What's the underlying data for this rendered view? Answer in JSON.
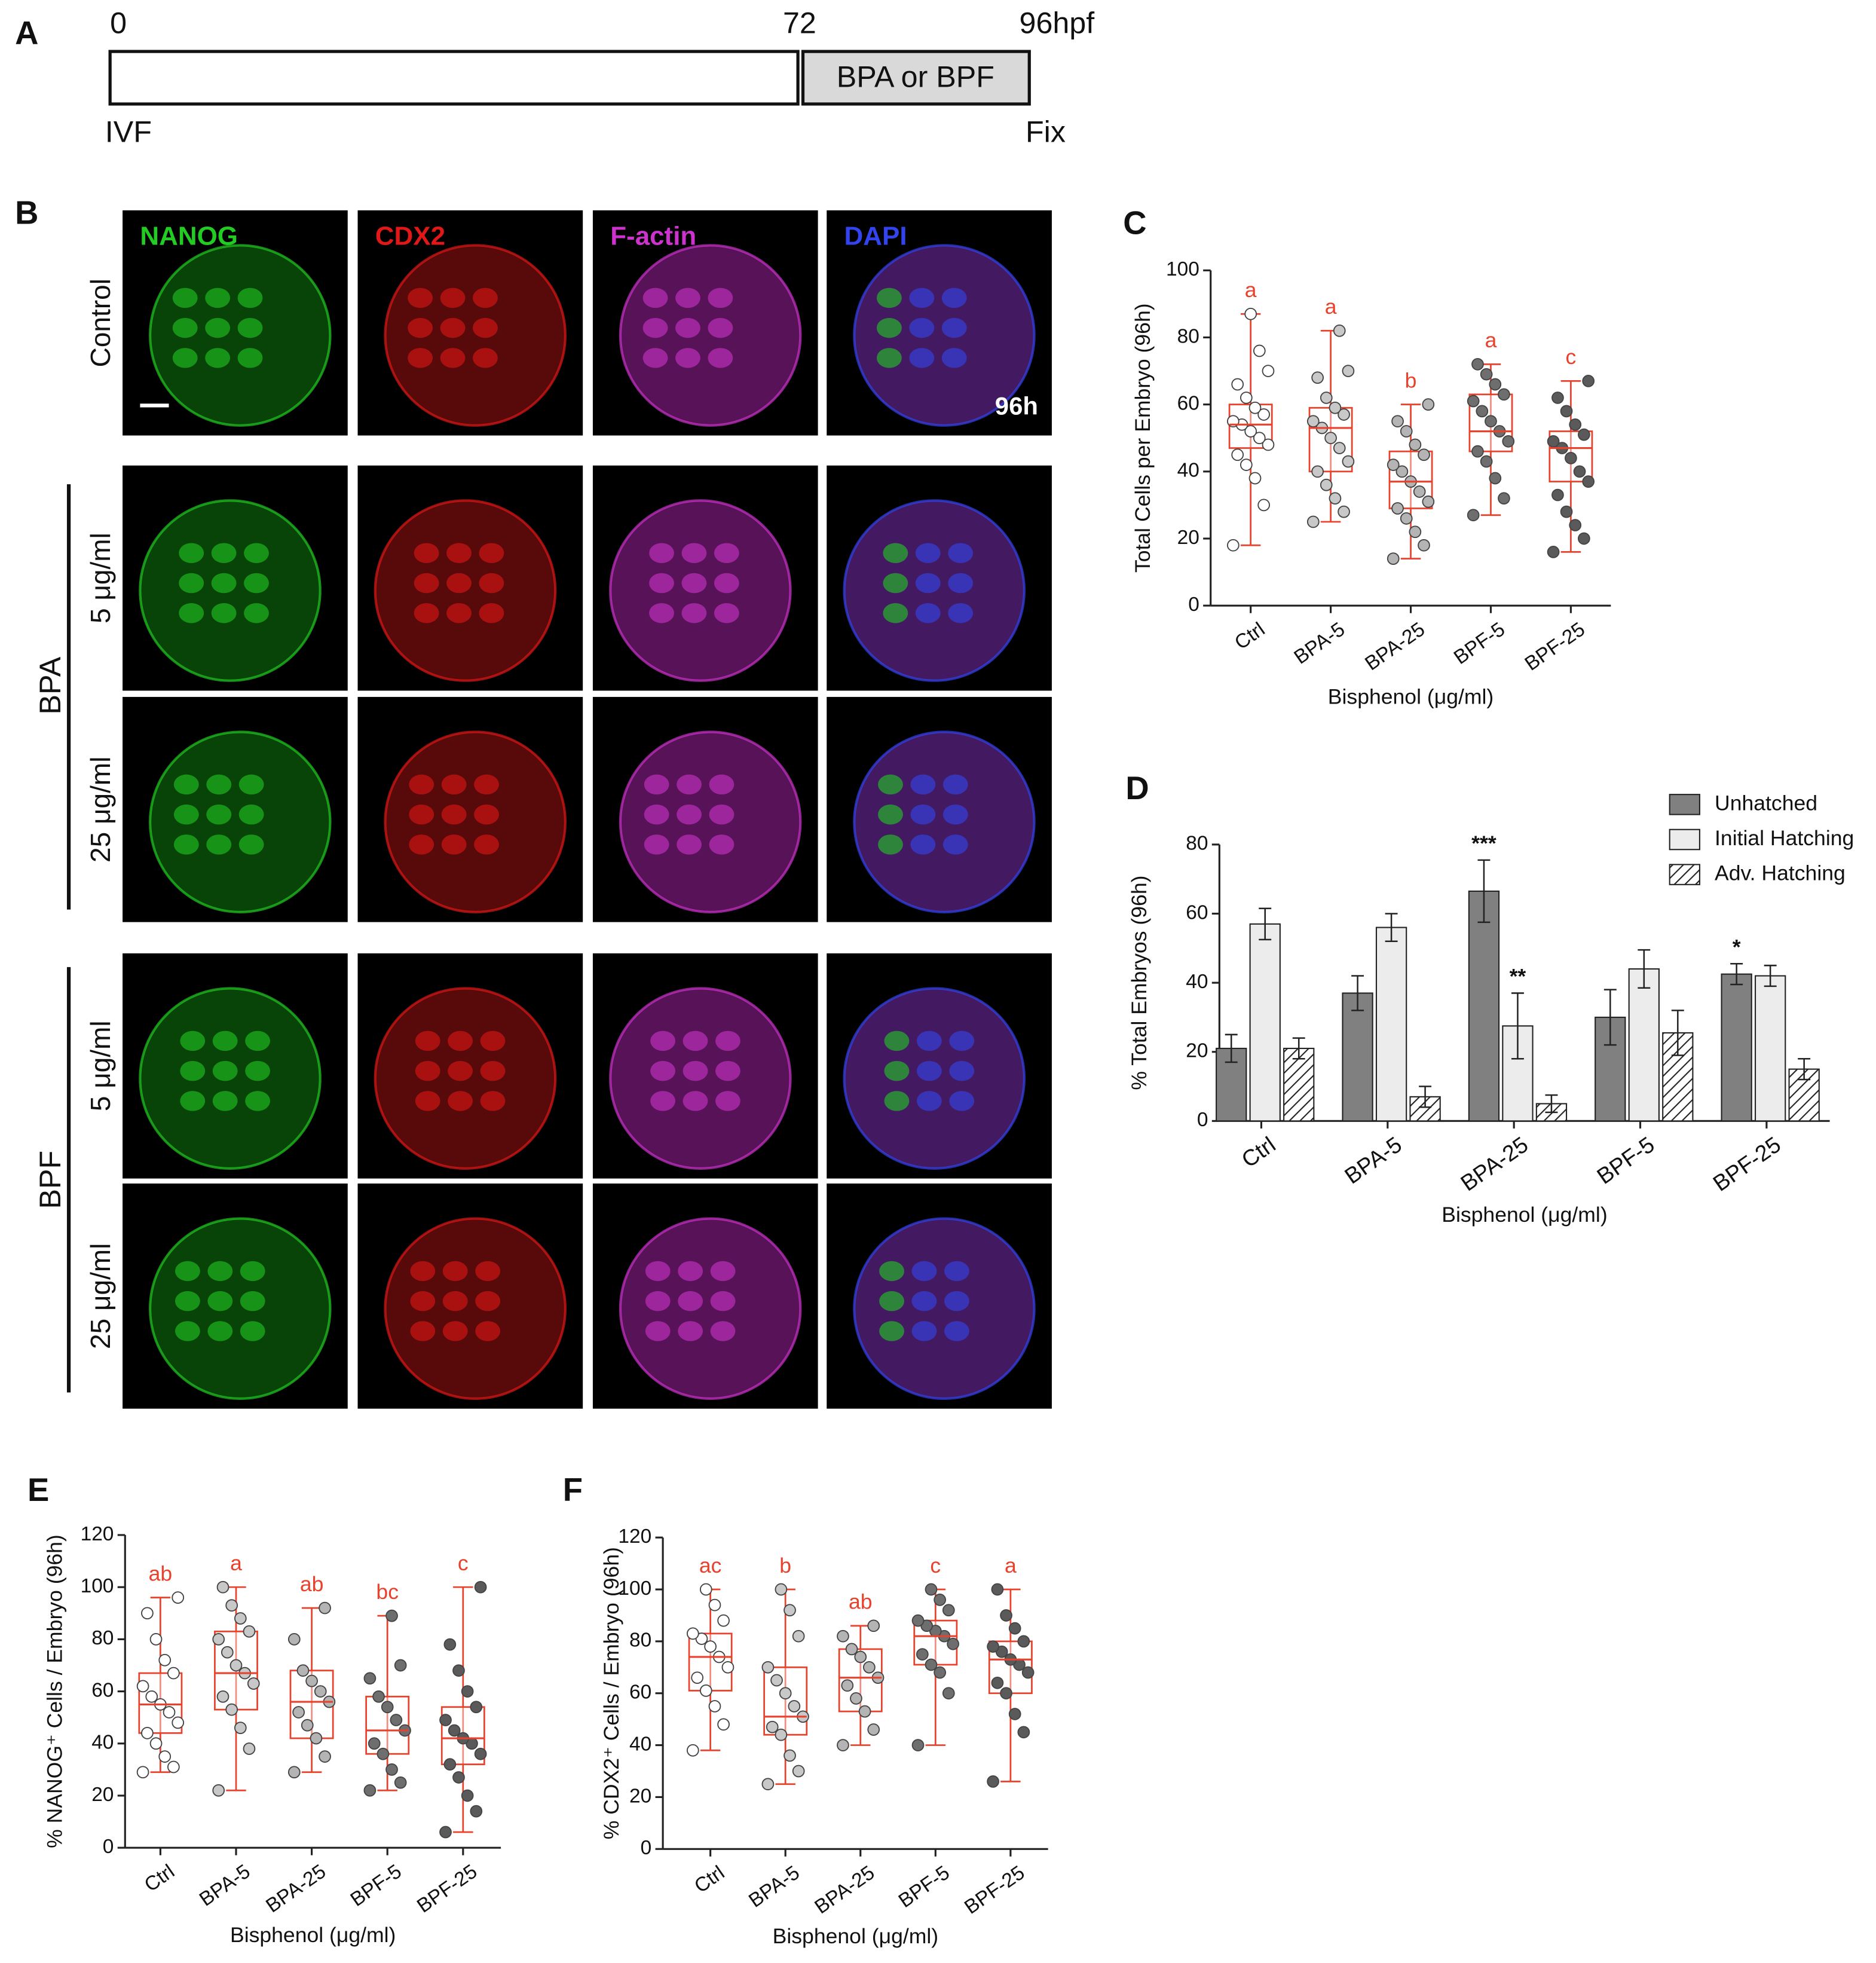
{
  "panel_a": {
    "label": "A",
    "times": [
      "0",
      "72",
      "96hpf"
    ],
    "treatment": "BPA or BPF",
    "start": "IVF",
    "end": "Fix"
  },
  "panel_b": {
    "label": "B",
    "channels": [
      "NANOG",
      "CDX2",
      "F-actin",
      "DAPI"
    ],
    "rows": [
      "Control",
      "5 μg/ml",
      "25 μg/ml",
      "5 μg/ml",
      "25 μg/ml"
    ],
    "groups": [
      "BPA",
      "BPF"
    ],
    "timepoint": "96h"
  },
  "chart_data": [
    {
      "type": "box",
      "panel_label": "C",
      "ylabel": "Total Cells per Embryo (96h)",
      "xlabel": "Bisphenol (μg/ml)",
      "categories": [
        "Ctrl",
        "BPA-5",
        "BPA-25",
        "BPF-5",
        "BPF-25"
      ],
      "ylim": [
        0,
        100
      ],
      "yticks": [
        0,
        20,
        40,
        60,
        80,
        100
      ],
      "box_color": "#e8412c",
      "annotation_color": "#e8412c",
      "annotations": [
        "a",
        "a",
        "b",
        "a",
        "c"
      ],
      "boxes": [
        {
          "min": 18,
          "q1": 47,
          "median": 54,
          "q3": 60,
          "max": 87,
          "point_color": "#ffffff",
          "points": [
            18,
            30,
            38,
            42,
            45,
            48,
            50,
            52,
            54,
            55,
            57,
            59,
            62,
            66,
            70,
            76,
            87
          ]
        },
        {
          "min": 25,
          "q1": 40,
          "median": 53,
          "q3": 59,
          "max": 82,
          "point_color": "#c8c8c8",
          "points": [
            25,
            28,
            32,
            36,
            40,
            43,
            47,
            50,
            53,
            55,
            57,
            59,
            62,
            68,
            70,
            82
          ]
        },
        {
          "min": 14,
          "q1": 29,
          "median": 37,
          "q3": 46,
          "max": 60,
          "point_color": "#b4b4b4",
          "points": [
            14,
            18,
            22,
            26,
            29,
            31,
            34,
            37,
            40,
            42,
            45,
            48,
            52,
            55,
            60
          ]
        },
        {
          "min": 27,
          "q1": 46,
          "median": 52,
          "q3": 63,
          "max": 72,
          "point_color": "#6e6e6e",
          "points": [
            27,
            32,
            38,
            43,
            46,
            49,
            52,
            55,
            58,
            61,
            63,
            66,
            69,
            72
          ]
        },
        {
          "min": 16,
          "q1": 37,
          "median": 47,
          "q3": 52,
          "max": 67,
          "point_color": "#5a5a5a",
          "points": [
            16,
            20,
            24,
            28,
            33,
            37,
            40,
            44,
            47,
            49,
            51,
            54,
            58,
            62,
            67
          ]
        }
      ]
    },
    {
      "type": "bar",
      "panel_label": "D",
      "ylabel": "% Total Embryos (96h)",
      "xlabel": "Bisphenol (μg/ml)",
      "categories": [
        "Ctrl",
        "BPA-5",
        "BPA-25",
        "BPF-5",
        "BPF-25"
      ],
      "ylim": [
        0,
        80
      ],
      "yticks": [
        0,
        20,
        40,
        60,
        80
      ],
      "legend": "upper right",
      "series": [
        {
          "name": "Unhatched",
          "color": "#808080",
          "values": [
            21,
            37,
            66.5,
            30,
            42.5
          ],
          "errors": [
            4,
            5,
            9,
            8,
            3
          ],
          "significance": [
            null,
            null,
            "***",
            null,
            "*"
          ]
        },
        {
          "name": "Initial Hatching",
          "color": "#ececec",
          "values": [
            57,
            56,
            27.5,
            44,
            42
          ],
          "errors": [
            4.5,
            4,
            9.5,
            5.5,
            3
          ],
          "significance": [
            null,
            null,
            "**",
            null,
            null
          ]
        },
        {
          "name": "Adv. Hatching",
          "color": "#ffffff",
          "hatch": true,
          "values": [
            21,
            7,
            5,
            25.5,
            15
          ],
          "errors": [
            3,
            3,
            2.5,
            6.5,
            3
          ],
          "significance": [
            null,
            null,
            null,
            null,
            null
          ]
        }
      ]
    },
    {
      "type": "box",
      "panel_label": "E",
      "ylabel": "% NANOG⁺ Cells / Embryo (96h)",
      "xlabel": "Bisphenol (μg/ml)",
      "categories": [
        "Ctrl",
        "BPA-5",
        "BPA-25",
        "BPF-5",
        "BPF-25"
      ],
      "ylim": [
        0,
        120
      ],
      "yticks": [
        0,
        20,
        40,
        60,
        80,
        100,
        120
      ],
      "box_color": "#e8412c",
      "annotation_color": "#e8412c",
      "annotations": [
        "ab",
        "a",
        "ab",
        "bc",
        "c"
      ],
      "boxes": [
        {
          "min": 29,
          "q1": 44,
          "median": 55,
          "q3": 67,
          "max": 96,
          "point_color": "#ffffff",
          "points": [
            29,
            31,
            35,
            40,
            44,
            48,
            52,
            55,
            58,
            62,
            67,
            72,
            80,
            90,
            96
          ]
        },
        {
          "min": 22,
          "q1": 53,
          "median": 67,
          "q3": 83,
          "max": 100,
          "point_color": "#c8c8c8",
          "points": [
            22,
            38,
            46,
            53,
            58,
            63,
            67,
            70,
            75,
            80,
            83,
            88,
            93,
            100
          ]
        },
        {
          "min": 29,
          "q1": 42,
          "median": 56,
          "q3": 68,
          "max": 92,
          "point_color": "#b4b4b4",
          "points": [
            29,
            35,
            42,
            47,
            52,
            56,
            60,
            64,
            68,
            80,
            92
          ]
        },
        {
          "min": 22,
          "q1": 36,
          "median": 45,
          "q3": 58,
          "max": 89,
          "point_color": "#6e6e6e",
          "points": [
            22,
            25,
            30,
            36,
            40,
            45,
            49,
            54,
            58,
            65,
            70,
            89
          ]
        },
        {
          "min": 6,
          "q1": 32,
          "median": 42,
          "q3": 54,
          "max": 100,
          "point_color": "#5a5a5a",
          "points": [
            6,
            14,
            20,
            27,
            32,
            36,
            40,
            42,
            45,
            49,
            54,
            60,
            68,
            78,
            100
          ]
        }
      ]
    },
    {
      "type": "box",
      "panel_label": "F",
      "ylabel": "% CDX2⁺ Cells / Embryo (96h)",
      "xlabel": "Bisphenol (μg/ml)",
      "categories": [
        "Ctrl",
        "BPA-5",
        "BPA-25",
        "BPF-5",
        "BPF-25"
      ],
      "ylim": [
        0,
        120
      ],
      "yticks": [
        0,
        20,
        40,
        60,
        80,
        100,
        120
      ],
      "box_color": "#e8412c",
      "annotation_color": "#e8412c",
      "annotations": [
        "ac",
        "b",
        "ab",
        "c",
        "a"
      ],
      "boxes": [
        {
          "min": 38,
          "q1": 61,
          "median": 74,
          "q3": 83,
          "max": 100,
          "point_color": "#ffffff",
          "points": [
            38,
            48,
            55,
            61,
            66,
            70,
            74,
            78,
            81,
            83,
            88,
            94,
            100
          ]
        },
        {
          "min": 25,
          "q1": 44,
          "median": 51,
          "q3": 70,
          "max": 100,
          "point_color": "#c8c8c8",
          "points": [
            25,
            30,
            36,
            44,
            47,
            51,
            55,
            60,
            65,
            70,
            82,
            92,
            100
          ]
        },
        {
          "min": 40,
          "q1": 53,
          "median": 66,
          "q3": 77,
          "max": 86,
          "point_color": "#b4b4b4",
          "points": [
            40,
            46,
            53,
            58,
            63,
            66,
            70,
            74,
            77,
            82,
            86
          ]
        },
        {
          "min": 40,
          "q1": 71,
          "median": 82,
          "q3": 88,
          "max": 100,
          "point_color": "#6e6e6e",
          "points": [
            40,
            60,
            68,
            71,
            75,
            79,
            82,
            84,
            86,
            88,
            92,
            96,
            100
          ]
        },
        {
          "min": 26,
          "q1": 60,
          "median": 73,
          "q3": 80,
          "max": 100,
          "point_color": "#5a5a5a",
          "points": [
            26,
            45,
            52,
            60,
            64,
            68,
            71,
            73,
            76,
            78,
            80,
            85,
            90,
            100
          ]
        }
      ]
    }
  ]
}
